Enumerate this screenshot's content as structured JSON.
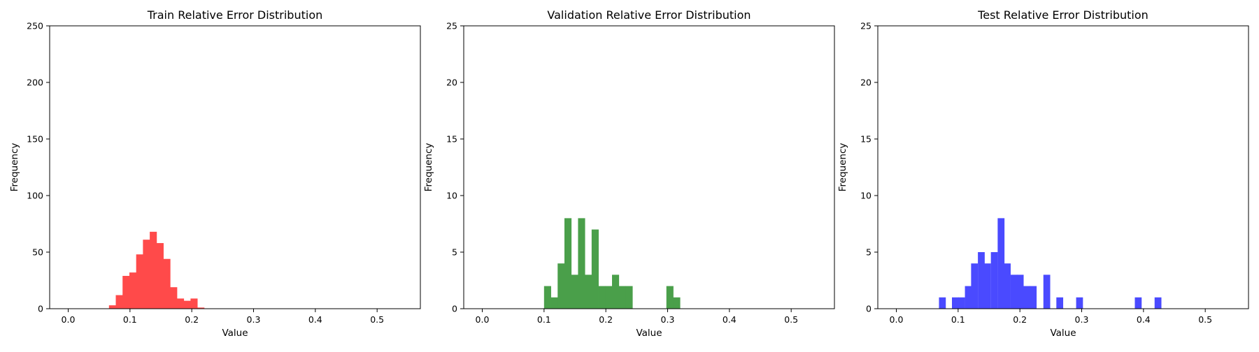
{
  "colors": {
    "train": "#ff4a4a",
    "validation": "#4a9f4a",
    "test": "#4a4aff",
    "axis": "#000000",
    "background": "#ffffff"
  },
  "chart_data": [
    {
      "type": "bar",
      "title": "Train Relative Error Distribution",
      "xlabel": "Value",
      "ylabel": "Frequency",
      "xlim": [
        -0.03,
        0.57
      ],
      "ylim": [
        0,
        250
      ],
      "xticks": [
        "0.0",
        "0.1",
        "0.2",
        "0.3",
        "0.4",
        "0.5"
      ],
      "yticks": [
        "0",
        "50",
        "100",
        "150",
        "200",
        "250"
      ],
      "bin_width": 0.011,
      "color_key": "train",
      "bins": [
        {
          "x0": 0.066,
          "count": 3
        },
        {
          "x0": 0.077,
          "count": 12
        },
        {
          "x0": 0.088,
          "count": 29
        },
        {
          "x0": 0.099,
          "count": 32
        },
        {
          "x0": 0.11,
          "count": 48
        },
        {
          "x0": 0.121,
          "count": 61
        },
        {
          "x0": 0.132,
          "count": 68
        },
        {
          "x0": 0.143,
          "count": 58
        },
        {
          "x0": 0.154,
          "count": 44
        },
        {
          "x0": 0.165,
          "count": 19
        },
        {
          "x0": 0.176,
          "count": 9
        },
        {
          "x0": 0.187,
          "count": 7
        },
        {
          "x0": 0.198,
          "count": 9
        },
        {
          "x0": 0.209,
          "count": 1
        }
      ],
      "grid": false
    },
    {
      "type": "bar",
      "title": "Validation Relative Error Distribution",
      "xlabel": "Value",
      "ylabel": "Frequency",
      "xlim": [
        -0.03,
        0.57
      ],
      "ylim": [
        0,
        25
      ],
      "xticks": [
        "0.0",
        "0.1",
        "0.2",
        "0.3",
        "0.4",
        "0.5"
      ],
      "yticks": [
        "0",
        "5",
        "10",
        "15",
        "20",
        "25"
      ],
      "bin_width": 0.011,
      "color_key": "validation",
      "bins": [
        {
          "x0": 0.1,
          "count": 2
        },
        {
          "x0": 0.111,
          "count": 1
        },
        {
          "x0": 0.122,
          "count": 4
        },
        {
          "x0": 0.133,
          "count": 8
        },
        {
          "x0": 0.144,
          "count": 3
        },
        {
          "x0": 0.155,
          "count": 8
        },
        {
          "x0": 0.166,
          "count": 3
        },
        {
          "x0": 0.177,
          "count": 7
        },
        {
          "x0": 0.188,
          "count": 2
        },
        {
          "x0": 0.199,
          "count": 2
        },
        {
          "x0": 0.21,
          "count": 3
        },
        {
          "x0": 0.221,
          "count": 2
        },
        {
          "x0": 0.232,
          "count": 2
        },
        {
          "x0": 0.298,
          "count": 2
        },
        {
          "x0": 0.309,
          "count": 1
        }
      ],
      "grid": false
    },
    {
      "type": "bar",
      "title": "Test Relative Error Distribution",
      "xlabel": "Value",
      "ylabel": "Frequency",
      "xlim": [
        -0.03,
        0.57
      ],
      "ylim": [
        0,
        25
      ],
      "xticks": [
        "0.0",
        "0.1",
        "0.2",
        "0.3",
        "0.4",
        "0.5"
      ],
      "yticks": [
        "0",
        "5",
        "10",
        "15",
        "20",
        "25"
      ],
      "bin_width": 0.0106,
      "color_key": "test",
      "bins": [
        {
          "x0": 0.069,
          "count": 1
        },
        {
          "x0": 0.09,
          "count": 1
        },
        {
          "x0": 0.1,
          "count": 1
        },
        {
          "x0": 0.111,
          "count": 2
        },
        {
          "x0": 0.121,
          "count": 4
        },
        {
          "x0": 0.132,
          "count": 5
        },
        {
          "x0": 0.142,
          "count": 4
        },
        {
          "x0": 0.153,
          "count": 5
        },
        {
          "x0": 0.164,
          "count": 8
        },
        {
          "x0": 0.174,
          "count": 4
        },
        {
          "x0": 0.185,
          "count": 3
        },
        {
          "x0": 0.195,
          "count": 3
        },
        {
          "x0": 0.206,
          "count": 2
        },
        {
          "x0": 0.216,
          "count": 2
        },
        {
          "x0": 0.238,
          "count": 3
        },
        {
          "x0": 0.259,
          "count": 1
        },
        {
          "x0": 0.291,
          "count": 1
        },
        {
          "x0": 0.386,
          "count": 1
        },
        {
          "x0": 0.418,
          "count": 1
        }
      ],
      "grid": false
    }
  ]
}
